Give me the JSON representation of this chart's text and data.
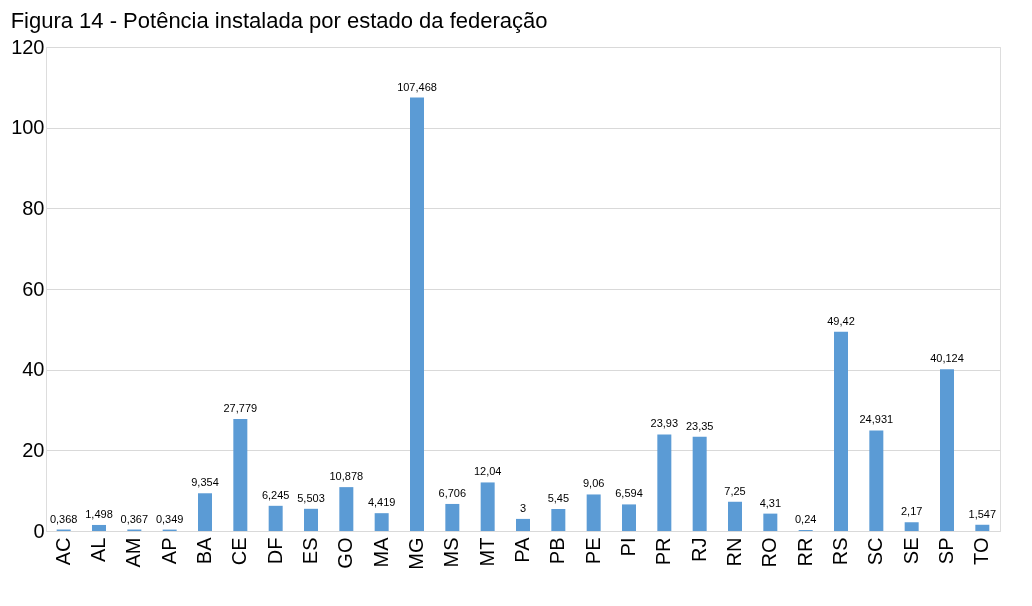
{
  "chart_data": {
    "type": "bar",
    "title": "Figura 14 - Potência instalada por estado da federação",
    "categories": [
      "AC",
      "AL",
      "AM",
      "AP",
      "BA",
      "CE",
      "DF",
      "ES",
      "GO",
      "MA",
      "MG",
      "MS",
      "MT",
      "PA",
      "PB",
      "PE",
      "PI",
      "PR",
      "RJ",
      "RN",
      "RO",
      "RR",
      "RS",
      "SC",
      "SE",
      "SP",
      "TO"
    ],
    "values": [
      0.368,
      1.498,
      0.367,
      0.349,
      9.354,
      27.779,
      6.245,
      5.503,
      10.878,
      4.419,
      107.468,
      6.706,
      12.04,
      3,
      5.45,
      9.06,
      6.594,
      23.93,
      23.35,
      7.25,
      4.31,
      0.24,
      49.42,
      24.931,
      2.17,
      40.124,
      1.547
    ],
    "value_labels": [
      "0,368",
      "1,498",
      "0,367",
      "0,349",
      "9,354",
      "27,779",
      "6,245",
      "5,503",
      "10,878",
      "4,419",
      "107,468",
      "6,706",
      "12,04",
      "3",
      "5,45",
      "9,06",
      "6,594",
      "23,93",
      "23,35",
      "7,25",
      "4,31",
      "0,24",
      "49,42",
      "24,931",
      "2,17",
      "40,124",
      "1,547"
    ],
    "color": "#5b9bd5",
    "ylim": [
      0,
      120
    ],
    "yticks": [
      0,
      20,
      40,
      60,
      80,
      100,
      120
    ],
    "grid": "y"
  }
}
